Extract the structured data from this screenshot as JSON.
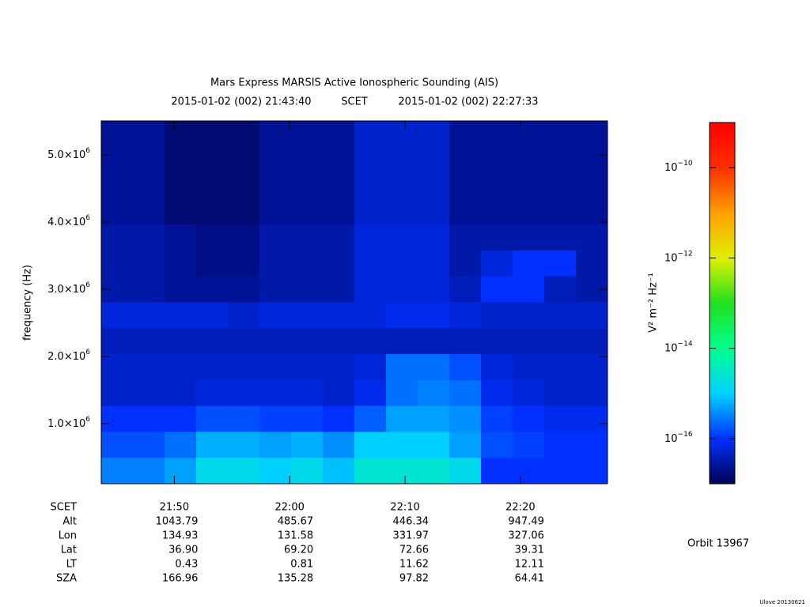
{
  "chart_data": {
    "type": "spectrogram",
    "title": "Mars Express MARSIS Active Ionospheric Sounding (AIS)",
    "start_time": "2015-01-02 (002) 21:43:40",
    "time_system": "SCET",
    "end_time": "2015-01-02 (002) 22:27:33",
    "y_label": "frequency (Hz)",
    "x_label": "SCET",
    "xlim": [
      43.667,
      87.55
    ],
    "xticks": [
      {
        "value": 50,
        "label": "21:50"
      },
      {
        "value": 60,
        "label": "22:00"
      },
      {
        "value": 70,
        "label": "22:10"
      },
      {
        "value": 80,
        "label": "22:20"
      }
    ],
    "ylim": [
      106000,
      5506000
    ],
    "yticks": [
      {
        "value": 1000000,
        "label": "1.0×10",
        "sup": "6"
      },
      {
        "value": 2000000,
        "label": "2.0×10",
        "sup": "6"
      },
      {
        "value": 3000000,
        "label": "3.0×10",
        "sup": "6"
      },
      {
        "value": 4000000,
        "label": "4.0×10",
        "sup": "6"
      },
      {
        "value": 5000000,
        "label": "5.0×10",
        "sup": "6"
      }
    ],
    "colorbar_label": "V² m⁻² Hz⁻¹",
    "zlim": [
      -17,
      -9
    ],
    "zticks": [
      {
        "value": -10,
        "label": "10",
        "sup": "−10"
      },
      {
        "value": -12,
        "label": "10",
        "sup": "−12"
      },
      {
        "value": -14,
        "label": "10",
        "sup": "−14"
      },
      {
        "value": -16,
        "label": "10",
        "sup": "−16"
      }
    ],
    "colormap": [
      "#000050",
      "#0030ff",
      "#00d0ff",
      "#00ff90",
      "#20e020",
      "#e0f000",
      "#ffa000",
      "#ff3000",
      "#ff0000"
    ],
    "z": [
      [
        -16.6,
        -16.6,
        -16.8,
        -16.8,
        -16.8,
        -16.6,
        -16.6,
        -16.6,
        -16.3,
        -16.3,
        -16.3,
        -16.6,
        -16.6,
        -16.6,
        -16.6,
        -16.6
      ],
      [
        -16.6,
        -16.6,
        -16.8,
        -16.8,
        -16.8,
        -16.6,
        -16.6,
        -16.6,
        -16.3,
        -16.3,
        -16.3,
        -16.6,
        -16.6,
        -16.6,
        -16.6,
        -16.6
      ],
      [
        -16.6,
        -16.6,
        -16.8,
        -16.8,
        -16.8,
        -16.6,
        -16.6,
        -16.6,
        -16.3,
        -16.3,
        -16.3,
        -16.6,
        -16.6,
        -16.6,
        -16.6,
        -16.6
      ],
      [
        -16.6,
        -16.6,
        -16.8,
        -16.8,
        -16.8,
        -16.6,
        -16.6,
        -16.6,
        -16.3,
        -16.3,
        -16.3,
        -16.6,
        -16.6,
        -16.6,
        -16.6,
        -16.6
      ],
      [
        -16.5,
        -16.5,
        -16.6,
        -16.7,
        -16.7,
        -16.5,
        -16.5,
        -16.5,
        -16.2,
        -16.2,
        -16.2,
        -16.5,
        -16.5,
        -16.5,
        -16.5,
        -16.5
      ],
      [
        -16.5,
        -16.5,
        -16.6,
        -16.7,
        -16.7,
        -16.5,
        -16.5,
        -16.5,
        -16.2,
        -16.2,
        -16.2,
        -16.5,
        -16.2,
        -16.0,
        -16.0,
        -16.5
      ],
      [
        -16.5,
        -16.5,
        -16.6,
        -16.6,
        -16.6,
        -16.5,
        -16.5,
        -16.5,
        -16.2,
        -16.2,
        -16.2,
        -16.4,
        -16.0,
        -16.0,
        -16.4,
        -16.5
      ],
      [
        -16.2,
        -16.2,
        -16.2,
        -16.2,
        -16.3,
        -16.2,
        -16.2,
        -16.2,
        -16.2,
        -16.1,
        -16.1,
        -16.2,
        -16.3,
        -16.3,
        -16.3,
        -16.3
      ],
      [
        -16.4,
        -16.4,
        -16.4,
        -16.4,
        -16.4,
        -16.4,
        -16.4,
        -16.4,
        -16.4,
        -16.4,
        -16.4,
        -16.4,
        -16.4,
        -16.4,
        -16.4,
        -16.4
      ],
      [
        -16.3,
        -16.3,
        -16.3,
        -16.3,
        -16.3,
        -16.3,
        -16.3,
        -16.3,
        -16.2,
        -15.6,
        -15.6,
        -15.8,
        -16.2,
        -16.3,
        -16.3,
        -16.3
      ],
      [
        -16.3,
        -16.3,
        -16.3,
        -16.2,
        -16.2,
        -16.2,
        -16.2,
        -16.3,
        -16.1,
        -15.6,
        -15.5,
        -15.6,
        -16.1,
        -16.2,
        -16.3,
        -16.3
      ],
      [
        -16.0,
        -16.0,
        -16.0,
        -15.8,
        -15.8,
        -15.9,
        -15.9,
        -16.0,
        -15.7,
        -15.3,
        -15.3,
        -15.4,
        -15.9,
        -16.0,
        -16.1,
        -16.1
      ],
      [
        -15.8,
        -15.8,
        -15.6,
        -15.2,
        -15.2,
        -15.3,
        -15.2,
        -15.4,
        -15.0,
        -15.0,
        -15.0,
        -15.3,
        -15.8,
        -15.9,
        -16.0,
        -16.0
      ],
      [
        -15.5,
        -15.5,
        -15.3,
        -14.8,
        -14.8,
        -15.0,
        -14.8,
        -15.1,
        -14.6,
        -14.6,
        -14.6,
        -14.8,
        -16.0,
        -16.0,
        -16.0,
        -16.0
      ]
    ],
    "ephemeris": [
      {
        "name": "Alt",
        "values": [
          "1043.79",
          "485.67",
          "446.34",
          "947.49"
        ]
      },
      {
        "name": "Lon",
        "values": [
          "134.93",
          "131.58",
          "331.97",
          "327.06"
        ]
      },
      {
        "name": "Lat",
        "values": [
          "36.90",
          "69.20",
          "72.66",
          "39.31"
        ]
      },
      {
        "name": "LT",
        "values": [
          "0.43",
          "0.81",
          "11.62",
          "12.11"
        ]
      },
      {
        "name": "SZA",
        "values": [
          "166.96",
          "135.28",
          "97.82",
          "64.41"
        ]
      }
    ],
    "orbit": "Orbit 13967",
    "footer": "Ulove 20130621"
  }
}
